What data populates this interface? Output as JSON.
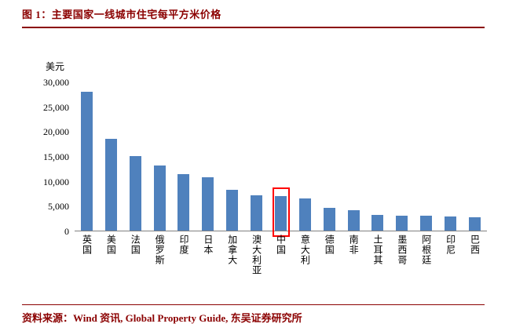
{
  "header": {
    "title": "图 1：主要国家一线城市住宅每平方米价格"
  },
  "footer": {
    "source": "资料来源：Wind 资讯, Global Property Guide,  东吴证券研究所"
  },
  "theme": {
    "accent": "#8b0000",
    "bar_color": "#4f81bd",
    "highlight_color": "#ff0000",
    "axis_color": "#808080"
  },
  "chart_data": {
    "type": "bar",
    "title": "主要国家一线城市住宅每平方米价格",
    "unit_label": "美元",
    "categories": [
      "英国",
      "美国",
      "法国",
      "俄罗斯",
      "印度",
      "日本",
      "加拿大",
      "澳大利亚",
      "中国",
      "意大利",
      "德国",
      "南非",
      "土耳其",
      "墨西哥",
      "阿根廷",
      "印尼",
      "巴西"
    ],
    "values": [
      28000,
      18500,
      15000,
      13100,
      11400,
      10700,
      8200,
      7100,
      7000,
      6500,
      4600,
      4100,
      3200,
      3000,
      3000,
      2800,
      2700
    ],
    "ylim": [
      0,
      30000
    ],
    "ytick_step": 5000,
    "grid": false,
    "legend": false,
    "highlight": {
      "category": "中国",
      "index": 8
    }
  }
}
